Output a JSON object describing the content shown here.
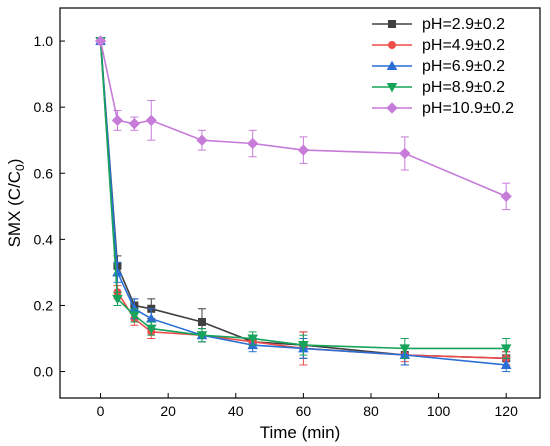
{
  "chart_data": {
    "type": "line",
    "xlabel": "Time  (min)",
    "ylabel_main": "SMX (C/C",
    "ylabel_sub": "0",
    "ylabel_close": ")",
    "xlim": [
      -12,
      130
    ],
    "ylim": [
      -0.08,
      1.1
    ],
    "xticks": [
      0,
      20,
      40,
      60,
      80,
      100,
      120
    ],
    "yticks": [
      0.0,
      0.2,
      0.4,
      0.6,
      0.8,
      1.0
    ],
    "x": [
      0,
      5,
      10,
      15,
      30,
      45,
      60,
      90,
      120
    ],
    "legend_position": "top-right",
    "series": [
      {
        "name": "pH=2.9±0.2",
        "color": "#404040",
        "marker": "square",
        "values": [
          1.0,
          0.32,
          0.2,
          0.19,
          0.15,
          0.09,
          0.08,
          0.05,
          0.04
        ],
        "errors": [
          0,
          0.03,
          0.02,
          0.03,
          0.04,
          0.02,
          0.04,
          0.03,
          0.02
        ]
      },
      {
        "name": "pH=4.9±0.2",
        "color": "#ef4b4b",
        "marker": "circle",
        "values": [
          1.0,
          0.24,
          0.16,
          0.12,
          0.11,
          0.09,
          0.07,
          0.05,
          0.04
        ],
        "errors": [
          0,
          0.02,
          0.02,
          0.02,
          0.02,
          0.02,
          0.05,
          0.02,
          0.02
        ]
      },
      {
        "name": "pH=6.9±0.2",
        "color": "#2a6fd6",
        "marker": "triangle",
        "values": [
          1.0,
          0.3,
          0.19,
          0.16,
          0.11,
          0.08,
          0.07,
          0.05,
          0.02
        ],
        "errors": [
          0,
          0.03,
          0.03,
          0.03,
          0.02,
          0.02,
          0.03,
          0.03,
          0.02
        ]
      },
      {
        "name": "pH=8.9±0.2",
        "color": "#16a35a",
        "marker": "triangle-down",
        "values": [
          1.0,
          0.22,
          0.17,
          0.13,
          0.11,
          0.1,
          0.08,
          0.07,
          0.07
        ],
        "errors": [
          0,
          0.02,
          0.02,
          0.02,
          0.02,
          0.02,
          0.03,
          0.03,
          0.03
        ]
      },
      {
        "name": "pH=10.9±0.2",
        "color": "#c77cd9",
        "marker": "diamond",
        "values": [
          1.0,
          0.76,
          0.75,
          0.76,
          0.7,
          0.69,
          0.67,
          0.66,
          0.53
        ],
        "errors": [
          0,
          0.03,
          0.02,
          0.06,
          0.03,
          0.04,
          0.04,
          0.05,
          0.04
        ]
      }
    ]
  }
}
